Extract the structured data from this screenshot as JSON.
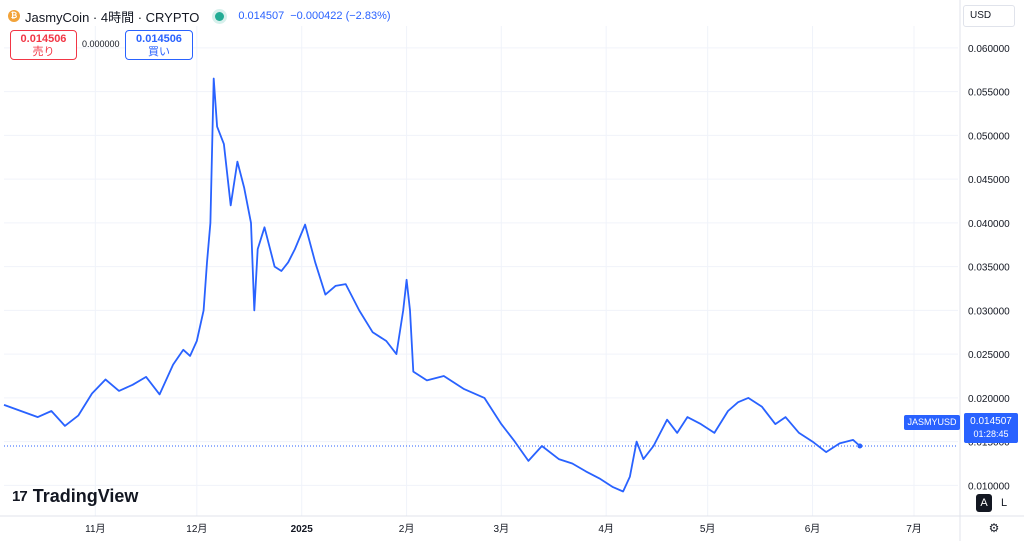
{
  "header": {
    "coin_glyph": "₿",
    "title": "JasmyCoin · 4時間 · CRYPTO",
    "price": "0.014507",
    "change": "−0.000422 (−2.83%)"
  },
  "trade": {
    "sell_price": "0.014506",
    "sell_label": "売り",
    "spread": "0.000000",
    "buy_price": "0.014506",
    "buy_label": "買い"
  },
  "currency": "USD",
  "last_price": {
    "symbol": "JASMYUSD",
    "value": "0.014507",
    "countdown": "01:28:45"
  },
  "logo": {
    "mark": "17",
    "name": "TradingView"
  },
  "scale": {
    "auto": "A",
    "log": "L"
  },
  "colors": {
    "line": "#2962ff",
    "grid": "#f0f3fa",
    "axis_text": "#131722"
  },
  "chart_data": {
    "type": "line",
    "series": [
      {
        "name": "JASMYUSD",
        "x": [
          "2024-10-05",
          "2024-10-10",
          "2024-10-15",
          "2024-10-19",
          "2024-10-23",
          "2024-10-27",
          "2024-10-31",
          "2024-11-04",
          "2024-11-08",
          "2024-11-12",
          "2024-11-16",
          "2024-11-20",
          "2024-11-24",
          "2024-11-27",
          "2024-11-29",
          "2024-12-01",
          "2024-12-03",
          "2024-12-04",
          "2024-12-05",
          "2024-12-06",
          "2024-12-07",
          "2024-12-09",
          "2024-12-11",
          "2024-12-13",
          "2024-12-15",
          "2024-12-17",
          "2024-12-18",
          "2024-12-19",
          "2024-12-21",
          "2024-12-24",
          "2024-12-26",
          "2024-12-28",
          "2024-12-30",
          "2025-01-02",
          "2025-01-05",
          "2025-01-08",
          "2025-01-11",
          "2025-01-14",
          "2025-01-18",
          "2025-01-22",
          "2025-01-26",
          "2025-01-29",
          "2025-01-31",
          "2025-02-01",
          "2025-02-02",
          "2025-02-03",
          "2025-02-07",
          "2025-02-12",
          "2025-02-18",
          "2025-02-24",
          "2025-03-01",
          "2025-03-05",
          "2025-03-09",
          "2025-03-13",
          "2025-03-18",
          "2025-03-22",
          "2025-03-26",
          "2025-03-30",
          "2025-04-03",
          "2025-04-06",
          "2025-04-08",
          "2025-04-10",
          "2025-04-12",
          "2025-04-15",
          "2025-04-19",
          "2025-04-22",
          "2025-04-25",
          "2025-04-29",
          "2025-05-03",
          "2025-05-07",
          "2025-05-10",
          "2025-05-13",
          "2025-05-17",
          "2025-05-21",
          "2025-05-24",
          "2025-05-28",
          "2025-06-01",
          "2025-06-05",
          "2025-06-09",
          "2025-06-13",
          "2025-06-15"
        ],
        "values": [
          0.0192,
          0.0185,
          0.0178,
          0.0185,
          0.0168,
          0.018,
          0.0205,
          0.0221,
          0.0208,
          0.0215,
          0.0224,
          0.0204,
          0.0238,
          0.0255,
          0.0248,
          0.0265,
          0.03,
          0.0355,
          0.04,
          0.0565,
          0.051,
          0.049,
          0.042,
          0.047,
          0.044,
          0.04,
          0.03,
          0.037,
          0.0395,
          0.035,
          0.0345,
          0.0355,
          0.037,
          0.0398,
          0.0355,
          0.0318,
          0.0328,
          0.033,
          0.03,
          0.0275,
          0.0265,
          0.025,
          0.03,
          0.0335,
          0.03,
          0.023,
          0.022,
          0.0225,
          0.021,
          0.02,
          0.017,
          0.015,
          0.0128,
          0.0145,
          0.013,
          0.0125,
          0.0116,
          0.0108,
          0.0098,
          0.0093,
          0.011,
          0.015,
          0.013,
          0.0145,
          0.0175,
          0.016,
          0.0178,
          0.017,
          0.016,
          0.0185,
          0.0195,
          0.02,
          0.019,
          0.017,
          0.0178,
          0.016,
          0.015,
          0.0138,
          0.0148,
          0.0152,
          0.0145
        ]
      }
    ],
    "y_ticks": [
      "0.060000",
      "0.055000",
      "0.050000",
      "0.045000",
      "0.040000",
      "0.035000",
      "0.030000",
      "0.025000",
      "0.020000",
      "0.015000",
      "0.010000"
    ],
    "x_ticks": [
      {
        "label": "11月",
        "date": "2024-11-01"
      },
      {
        "label": "12月",
        "date": "2024-12-01"
      },
      {
        "label": "2025",
        "date": "2025-01-01"
      },
      {
        "label": "2月",
        "date": "2025-02-01"
      },
      {
        "label": "3月",
        "date": "2025-03-01"
      },
      {
        "label": "4月",
        "date": "2025-04-01"
      },
      {
        "label": "5月",
        "date": "2025-05-01"
      },
      {
        "label": "6月",
        "date": "2025-06-01"
      },
      {
        "label": "7月",
        "date": "2025-07-01"
      }
    ],
    "xlim": [
      "2024-10-05",
      "2025-07-14"
    ],
    "ylim": [
      0.0065,
      0.0625
    ],
    "last_value": 0.014507,
    "grid": true,
    "scale": "linear"
  }
}
